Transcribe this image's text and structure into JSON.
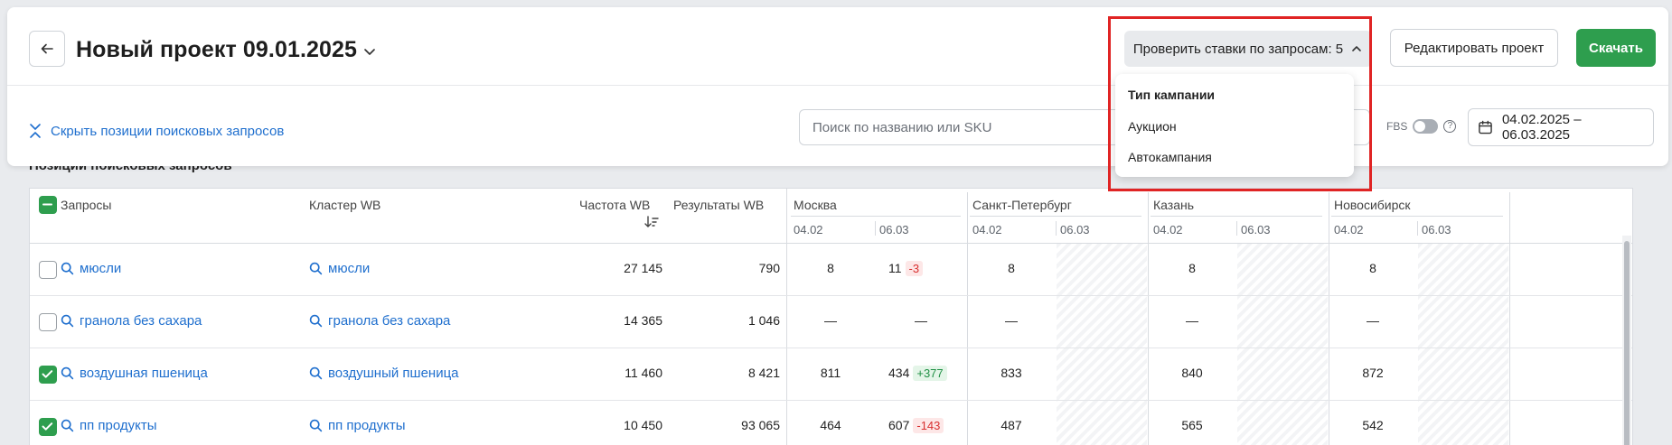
{
  "header": {
    "title": "Новый проект 09.01.2025",
    "check_bids_label": "Проверить ставки по запросам: 5",
    "edit_label": "Редактировать проект",
    "download_label": "Скачать"
  },
  "toolbar": {
    "hide_positions_label": "Скрыть позиции поисковых запросов",
    "search_placeholder": "Поиск по названию или SKU",
    "fbs_label": "FBS",
    "fbs_enabled": false,
    "date_range": "04.02.2025 – 06.03.2025"
  },
  "dropdown": {
    "heading": "Тип кампании",
    "items": [
      "Аукцион",
      "Автокампания"
    ]
  },
  "section_title": "Позиции поисковых запросов",
  "table": {
    "columns": {
      "queries": "Запросы",
      "cluster": "Кластер WB",
      "frequency": "Частота WB",
      "results": "Результаты WB"
    },
    "cities": [
      {
        "name": "Москва",
        "dates": [
          "04.02",
          "06.03"
        ]
      },
      {
        "name": "Санкт-Петербург",
        "dates": [
          "04.02",
          "06.03"
        ]
      },
      {
        "name": "Казань",
        "dates": [
          "04.02",
          "06.03"
        ]
      },
      {
        "name": "Новосибирск",
        "dates": [
          "04.02",
          "06.03"
        ]
      }
    ],
    "rows": [
      {
        "checked": false,
        "query": "мюсли",
        "cluster": "мюсли",
        "frequency": "27 145",
        "results": "790",
        "msk_a": "8",
        "msk_b": "11",
        "msk_delta": "-3",
        "msk_delta_type": "neg",
        "spb_a": "8",
        "kzn_a": "8",
        "nsk_a": "8"
      },
      {
        "checked": false,
        "query": "гранола без сахара",
        "cluster": "гранола без сахара",
        "frequency": "14 365",
        "results": "1 046",
        "msk_a": "—",
        "msk_b": "—",
        "msk_delta": "",
        "msk_delta_type": "",
        "spb_a": "—",
        "kzn_a": "—",
        "nsk_a": "—"
      },
      {
        "checked": true,
        "query": "воздушная пшеница",
        "cluster": "воздушный пшеница",
        "frequency": "11 460",
        "results": "8 421",
        "msk_a": "811",
        "msk_b": "434",
        "msk_delta": "+377",
        "msk_delta_type": "pos",
        "spb_a": "833",
        "kzn_a": "840",
        "nsk_a": "872"
      },
      {
        "checked": true,
        "query": "пп продукты",
        "cluster": "пп продукты",
        "frequency": "10 450",
        "results": "93 065",
        "msk_a": "464",
        "msk_b": "607",
        "msk_delta": "-143",
        "msk_delta_type": "neg",
        "spb_a": "487",
        "kzn_a": "565",
        "nsk_a": "542"
      }
    ]
  },
  "colors": {
    "accent_green": "#2e9e4e",
    "link_blue": "#1f6fce",
    "highlight_red": "#e02424"
  }
}
